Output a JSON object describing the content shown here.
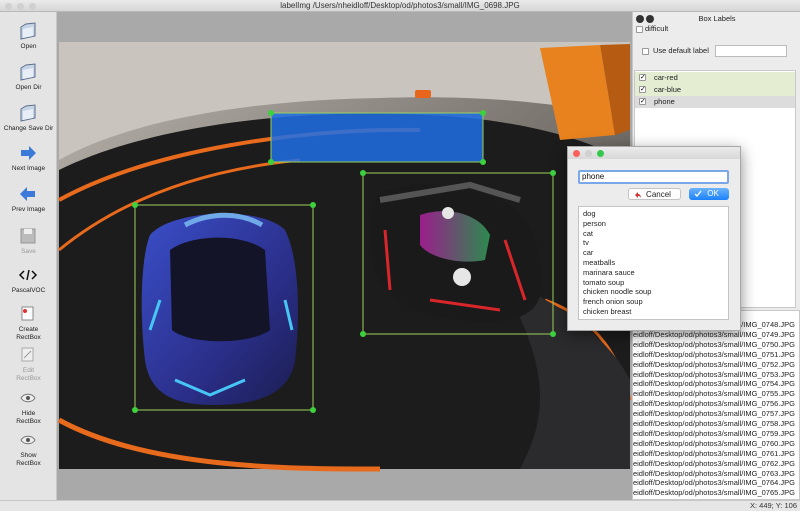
{
  "window": {
    "title": "labelImg /Users/nheidloff/Desktop/od/photos3/small/IMG_0698.JPG"
  },
  "toolbar": [
    "Open",
    "Open Dir",
    "Change Save Dir",
    "Next Image",
    "Prev Image",
    "Save",
    "PascalVOC",
    "Create\nRectBox",
    "Edit\nRectBox",
    "Hide\nRectBox",
    "Show\nRectBox"
  ],
  "box_labels": {
    "title": "Box Labels",
    "difficult": "difficult",
    "use_default_label": "Use default label",
    "labels": [
      "car-red",
      "car-blue",
      "phone"
    ]
  },
  "dialog": {
    "input": "phone",
    "cancel": "Cancel",
    "ok": "OK",
    "options": [
      "dog",
      "person",
      "cat",
      "tv",
      "car",
      "meatballs",
      "marinara sauce",
      "tomato soup",
      "chicken noodle soup",
      "french onion soup",
      "chicken breast"
    ]
  },
  "file_list": [
    "eidloff/Desktop/od/photos3/small/IMG_0748.JPG",
    "eidloff/Desktop/od/photos3/small/IMG_0749.JPG",
    "eidloff/Desktop/od/photos3/small/IMG_0750.JPG",
    "eidloff/Desktop/od/photos3/small/IMG_0751.JPG",
    "eidloff/Desktop/od/photos3/small/IMG_0752.JPG",
    "eidloff/Desktop/od/photos3/small/IMG_0753.JPG",
    "eidloff/Desktop/od/photos3/small/IMG_0754.JPG",
    "eidloff/Desktop/od/photos3/small/IMG_0755.JPG",
    "eidloff/Desktop/od/photos3/small/IMG_0756.JPG",
    "eidloff/Desktop/od/photos3/small/IMG_0757.JPG",
    "eidloff/Desktop/od/photos3/small/IMG_0758.JPG",
    "eidloff/Desktop/od/photos3/small/IMG_0759.JPG",
    "eidloff/Desktop/od/photos3/small/IMG_0760.JPG",
    "eidloff/Desktop/od/photos3/small/IMG_0761.JPG",
    "eidloff/Desktop/od/photos3/small/IMG_0762.JPG",
    "eidloff/Desktop/od/photos3/small/IMG_0763.JPG",
    "eidloff/Desktop/od/photos3/small/IMG_0764.JPG",
    "eidloff/Desktop/od/photos3/small/IMG_0765.JPG"
  ],
  "status": "X: 449; Y: 106"
}
